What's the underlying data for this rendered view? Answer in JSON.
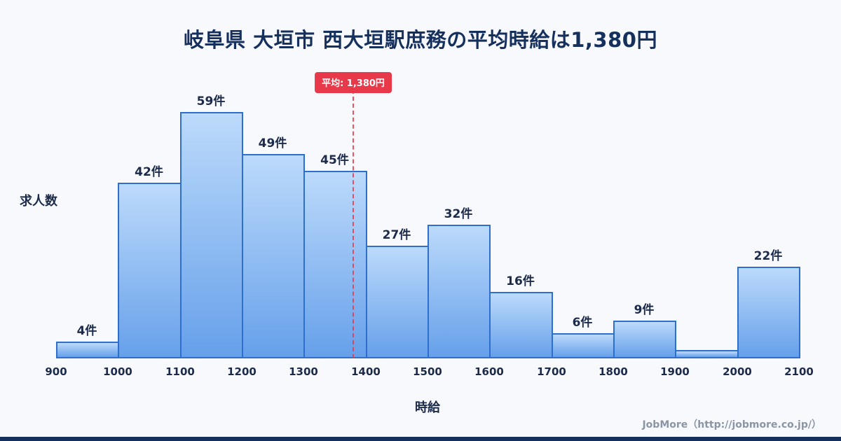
{
  "page": {
    "footer": "JobMore（http://jobmore.co.jp/）"
  },
  "chart_data": {
    "type": "bar",
    "title": "岐阜県 大垣市 西大垣駅庶務の平均時給は1,380円",
    "xlabel": "時給",
    "ylabel": "求人数",
    "bin_edges": [
      900,
      1000,
      1100,
      1200,
      1300,
      1400,
      1500,
      1600,
      1700,
      1800,
      1900,
      2000,
      2100
    ],
    "values": [
      4,
      42,
      59,
      49,
      45,
      27,
      32,
      16,
      6,
      9,
      2,
      22
    ],
    "bar_labels": [
      "4件",
      "42件",
      "59件",
      "49件",
      "45件",
      "27件",
      "32件",
      "16件",
      "6件",
      "9件",
      "",
      "22件"
    ],
    "average": 1380,
    "average_label": "平均: 1,380円",
    "ylim": [
      0,
      62
    ],
    "grid": false,
    "legend": "none",
    "colors": {
      "background": "#f7f9fd",
      "bar_top": "#bcdafb",
      "bar_bottom": "#66a0ea",
      "bar_border": "#2e6fce",
      "average_line": "#e8394a",
      "title_text": "#16305e",
      "axis_text": "#1c2b4a",
      "footer_text": "#8b95a5"
    }
  }
}
